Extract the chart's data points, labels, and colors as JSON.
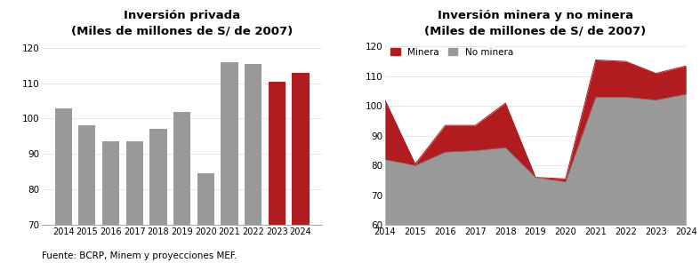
{
  "bar_years": [
    2014,
    2015,
    2016,
    2017,
    2018,
    2019,
    2020,
    2021,
    2022,
    2023,
    2024
  ],
  "bar_values": [
    103,
    98,
    93.5,
    93.5,
    97,
    102,
    84.5,
    116,
    115.5,
    110.5,
    113
  ],
  "bar_colors": [
    "#999999",
    "#999999",
    "#999999",
    "#999999",
    "#999999",
    "#999999",
    "#999999",
    "#999999",
    "#999999",
    "#b01c20",
    "#b01c20"
  ],
  "area_years": [
    2014,
    2015,
    2016,
    2017,
    2018,
    2019,
    2020,
    2021,
    2022,
    2023,
    2024
  ],
  "area_total": [
    102,
    80.5,
    93.5,
    93.5,
    101,
    76,
    75.5,
    115.5,
    115,
    111,
    113.5
  ],
  "area_no_minera": [
    82,
    80,
    84.5,
    85,
    86,
    76,
    74.5,
    103,
    103,
    102,
    104
  ],
  "title1": "Inversión privada",
  "subtitle1": "(Miles de millones de S/ de 2007)",
  "title2": "Inversión minera y no minera",
  "subtitle2": "(Miles de millones de S/ de 2007)",
  "ylim1": [
    70,
    122
  ],
  "yticks1": [
    70,
    80,
    90,
    100,
    110,
    120
  ],
  "ylim2": [
    60,
    122
  ],
  "yticks2": [
    60,
    70,
    80,
    90,
    100,
    110,
    120
  ],
  "color_gray": "#999999",
  "color_red": "#b01c20",
  "fuente": "Fuente: BCRP, Minem y proyecciones MEF.",
  "legend_minera": "Minera",
  "legend_no_minera": "No minera",
  "fig_width": 7.87,
  "fig_height": 3.05,
  "title_fontsize": 9.5,
  "tick_fontsize": 7,
  "fuente_fontsize": 7.5
}
